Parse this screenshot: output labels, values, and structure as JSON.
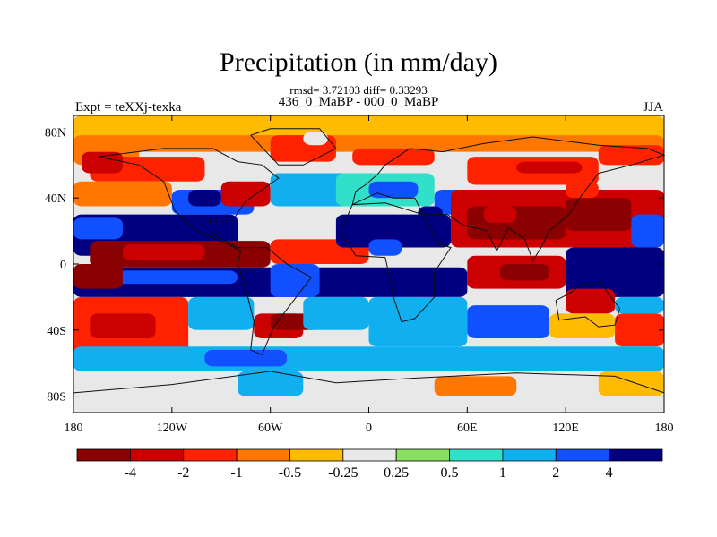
{
  "chart_data": {
    "type": "heatmap",
    "title": "Precipitation (in mm/day)",
    "stats_line": "rmsd= 3.72103 diff= 0.33293",
    "comparison_line": "436_0_MaBP - 000_0_MaBP",
    "experiment_label": "Expt = teXXj-texka",
    "season_label": "JJA",
    "x_range": [
      -180,
      180
    ],
    "y_range": [
      -90,
      90
    ],
    "x_ticks": [
      {
        "value": -180,
        "label": "180"
      },
      {
        "value": -120,
        "label": "120W"
      },
      {
        "value": -60,
        "label": "60W"
      },
      {
        "value": 0,
        "label": "0"
      },
      {
        "value": 60,
        "label": "60E"
      },
      {
        "value": 120,
        "label": "120E"
      },
      {
        "value": 180,
        "label": "180"
      }
    ],
    "y_ticks": [
      {
        "value": 80,
        "label": "80N"
      },
      {
        "value": 40,
        "label": "40N"
      },
      {
        "value": 0,
        "label": "0"
      },
      {
        "value": -40,
        "label": "40S"
      },
      {
        "value": -80,
        "label": "80S"
      }
    ],
    "colorbar": {
      "colors": [
        "#8b0000",
        "#cc0000",
        "#ff2200",
        "#ff7700",
        "#ffbb00",
        "#e8e8e8",
        "#88e060",
        "#30e0c8",
        "#10b0f0",
        "#1050ff",
        "#000080"
      ],
      "tick_labels": [
        "-4",
        "-2",
        "-1",
        "-0.5",
        "-0.25",
        "0.25",
        "0.5",
        "1",
        "2",
        "4"
      ]
    },
    "regions": [
      {
        "lon": [
          -180,
          180
        ],
        "lat": [
          -90,
          90
        ],
        "level": 5
      },
      {
        "lon": [
          -180,
          180
        ],
        "lat": [
          70,
          90
        ],
        "level": 4
      },
      {
        "lon": [
          -180,
          -140
        ],
        "lat": [
          60,
          75
        ],
        "level": 3
      },
      {
        "lon": [
          -170,
          -100
        ],
        "lat": [
          50,
          65
        ],
        "level": 2
      },
      {
        "lon": [
          -175,
          -150
        ],
        "lat": [
          55,
          68
        ],
        "level": 1
      },
      {
        "lon": [
          -180,
          180
        ],
        "lat": [
          68,
          78
        ],
        "level": 3
      },
      {
        "lon": [
          -60,
          -20
        ],
        "lat": [
          62,
          78
        ],
        "level": 2
      },
      {
        "lon": [
          -40,
          -25
        ],
        "lat": [
          72,
          80
        ],
        "level": 5
      },
      {
        "lon": [
          -10,
          40
        ],
        "lat": [
          60,
          70
        ],
        "level": 2
      },
      {
        "lon": [
          60,
          140
        ],
        "lat": [
          48,
          65
        ],
        "level": 2
      },
      {
        "lon": [
          90,
          130
        ],
        "lat": [
          55,
          62
        ],
        "level": 1
      },
      {
        "lon": [
          140,
          180
        ],
        "lat": [
          60,
          72
        ],
        "level": 2
      },
      {
        "lon": [
          -180,
          -120
        ],
        "lat": [
          35,
          50
        ],
        "level": 3
      },
      {
        "lon": [
          -120,
          -70
        ],
        "lat": [
          30,
          45
        ],
        "level": 9
      },
      {
        "lon": [
          -110,
          -90
        ],
        "lat": [
          35,
          45
        ],
        "level": 10
      },
      {
        "lon": [
          -90,
          -60
        ],
        "lat": [
          35,
          50
        ],
        "level": 1
      },
      {
        "lon": [
          -60,
          -10
        ],
        "lat": [
          35,
          55
        ],
        "level": 8
      },
      {
        "lon": [
          -60,
          -20
        ],
        "lat": [
          25,
          35
        ],
        "level": 5
      },
      {
        "lon": [
          -20,
          40
        ],
        "lat": [
          35,
          55
        ],
        "level": 7
      },
      {
        "lon": [
          0,
          30
        ],
        "lat": [
          40,
          50
        ],
        "level": 9
      },
      {
        "lon": [
          40,
          60
        ],
        "lat": [
          30,
          45
        ],
        "level": 9
      },
      {
        "lon": [
          30,
          45
        ],
        "lat": [
          25,
          35
        ],
        "level": 10
      },
      {
        "lon": [
          50,
          180
        ],
        "lat": [
          10,
          45
        ],
        "level": 1
      },
      {
        "lon": [
          60,
          120
        ],
        "lat": [
          15,
          35
        ],
        "level": 0
      },
      {
        "lon": [
          70,
          90
        ],
        "lat": [
          25,
          35
        ],
        "level": 1
      },
      {
        "lon": [
          120,
          160
        ],
        "lat": [
          20,
          40
        ],
        "level": 0
      },
      {
        "lon": [
          160,
          180
        ],
        "lat": [
          10,
          30
        ],
        "level": 9
      },
      {
        "lon": [
          120,
          140
        ],
        "lat": [
          40,
          50
        ],
        "level": 2
      },
      {
        "lon": [
          -180,
          -80
        ],
        "lat": [
          5,
          30
        ],
        "level": 10
      },
      {
        "lon": [
          -180,
          -150
        ],
        "lat": [
          15,
          28
        ],
        "level": 9
      },
      {
        "lon": [
          -170,
          -60
        ],
        "lat": [
          -2,
          14
        ],
        "level": 0
      },
      {
        "lon": [
          -150,
          -100
        ],
        "lat": [
          2,
          12
        ],
        "level": 1
      },
      {
        "lon": [
          -60,
          0
        ],
        "lat": [
          0,
          15
        ],
        "level": 2
      },
      {
        "lon": [
          -20,
          50
        ],
        "lat": [
          10,
          30
        ],
        "level": 10
      },
      {
        "lon": [
          0,
          20
        ],
        "lat": [
          5,
          15
        ],
        "level": 9
      },
      {
        "lon": [
          -180,
          60
        ],
        "lat": [
          -20,
          -2
        ],
        "level": 10
      },
      {
        "lon": [
          -170,
          -80
        ],
        "lat": [
          -12,
          -4
        ],
        "level": 9
      },
      {
        "lon": [
          -180,
          -150
        ],
        "lat": [
          -15,
          0
        ],
        "level": 0
      },
      {
        "lon": [
          -60,
          -30
        ],
        "lat": [
          -20,
          0
        ],
        "level": 9
      },
      {
        "lon": [
          60,
          120
        ],
        "lat": [
          -15,
          5
        ],
        "level": 1
      },
      {
        "lon": [
          80,
          110
        ],
        "lat": [
          -10,
          0
        ],
        "level": 0
      },
      {
        "lon": [
          120,
          180
        ],
        "lat": [
          -20,
          10
        ],
        "level": 10
      },
      {
        "lon": [
          120,
          150
        ],
        "lat": [
          -30,
          -15
        ],
        "level": 1
      },
      {
        "lon": [
          150,
          180
        ],
        "lat": [
          -30,
          -20
        ],
        "level": 8
      },
      {
        "lon": [
          -180,
          -110
        ],
        "lat": [
          -55,
          -20
        ],
        "level": 2
      },
      {
        "lon": [
          -170,
          -130
        ],
        "lat": [
          -45,
          -30
        ],
        "level": 1
      },
      {
        "lon": [
          -110,
          -70
        ],
        "lat": [
          -40,
          -20
        ],
        "level": 8
      },
      {
        "lon": [
          -70,
          -40
        ],
        "lat": [
          -45,
          -30
        ],
        "level": 1
      },
      {
        "lon": [
          -60,
          -30
        ],
        "lat": [
          -40,
          -30
        ],
        "level": 0
      },
      {
        "lon": [
          -40,
          0
        ],
        "lat": [
          -40,
          -20
        ],
        "level": 8
      },
      {
        "lon": [
          0,
          60
        ],
        "lat": [
          -50,
          -20
        ],
        "level": 8
      },
      {
        "lon": [
          60,
          110
        ],
        "lat": [
          -45,
          -25
        ],
        "level": 9
      },
      {
        "lon": [
          110,
          150
        ],
        "lat": [
          -45,
          -30
        ],
        "level": 4
      },
      {
        "lon": [
          150,
          180
        ],
        "lat": [
          -50,
          -30
        ],
        "level": 2
      },
      {
        "lon": [
          -180,
          180
        ],
        "lat": [
          -65,
          -50
        ],
        "level": 8
      },
      {
        "lon": [
          -100,
          -50
        ],
        "lat": [
          -62,
          -52
        ],
        "level": 9
      },
      {
        "lon": [
          80,
          140
        ],
        "lat": [
          -62,
          -52
        ],
        "level": 8
      },
      {
        "lon": [
          -180,
          180
        ],
        "lat": [
          -90,
          -65
        ],
        "level": 5
      },
      {
        "lon": [
          -80,
          -40
        ],
        "lat": [
          -80,
          -65
        ],
        "level": 8
      },
      {
        "lon": [
          40,
          90
        ],
        "lat": [
          -80,
          -68
        ],
        "level": 3
      },
      {
        "lon": [
          140,
          180
        ],
        "lat": [
          -80,
          -65
        ],
        "level": 4
      }
    ],
    "coastlines": [
      [
        [
          -165,
          65
        ],
        [
          -140,
          60
        ],
        [
          -125,
          50
        ],
        [
          -118,
          32
        ],
        [
          -105,
          20
        ],
        [
          -88,
          13
        ],
        [
          -78,
          8
        ],
        [
          -80,
          0
        ],
        [
          -75,
          -15
        ],
        [
          -70,
          -35
        ],
        [
          -72,
          -52
        ],
        [
          -65,
          -55
        ],
        [
          -58,
          -38
        ],
        [
          -48,
          -25
        ],
        [
          -35,
          -8
        ],
        [
          -50,
          0
        ],
        [
          -62,
          10
        ],
        [
          -80,
          10
        ],
        [
          -95,
          18
        ],
        [
          -97,
          28
        ],
        [
          -82,
          28
        ],
        [
          -75,
          38
        ],
        [
          -65,
          45
        ],
        [
          -55,
          52
        ],
        [
          -65,
          60
        ],
        [
          -80,
          62
        ],
        [
          -95,
          70
        ],
        [
          -125,
          70
        ],
        [
          -165,
          65
        ]
      ],
      [
        [
          -72,
          78
        ],
        [
          -55,
          60
        ],
        [
          -40,
          60
        ],
        [
          -20,
          70
        ],
        [
          -30,
          82
        ],
        [
          -60,
          82
        ],
        [
          -72,
          78
        ]
      ],
      [
        [
          -10,
          36
        ],
        [
          -17,
          20
        ],
        [
          -8,
          5
        ],
        [
          10,
          4
        ],
        [
          12,
          -5
        ],
        [
          15,
          -20
        ],
        [
          20,
          -35
        ],
        [
          28,
          -33
        ],
        [
          40,
          -20
        ],
        [
          40,
          -5
        ],
        [
          50,
          10
        ],
        [
          43,
          12
        ],
        [
          33,
          30
        ],
        [
          10,
          37
        ],
        [
          -10,
          36
        ]
      ],
      [
        [
          -10,
          36
        ],
        [
          -8,
          44
        ],
        [
          -2,
          48
        ],
        [
          5,
          54
        ],
        [
          10,
          60
        ],
        [
          25,
          70
        ],
        [
          45,
          68
        ],
        [
          70,
          73
        ],
        [
          100,
          77
        ],
        [
          140,
          72
        ],
        [
          170,
          70
        ],
        [
          180,
          66
        ],
        [
          160,
          60
        ],
        [
          140,
          55
        ],
        [
          130,
          42
        ],
        [
          122,
          30
        ],
        [
          110,
          20
        ],
        [
          105,
          10
        ],
        [
          100,
          2
        ],
        [
          95,
          15
        ],
        [
          85,
          22
        ],
        [
          78,
          8
        ],
        [
          72,
          20
        ],
        [
          57,
          24
        ],
        [
          48,
          30
        ],
        [
          33,
          30
        ],
        [
          28,
          40
        ],
        [
          15,
          40
        ],
        [
          5,
          43
        ],
        [
          -10,
          36
        ]
      ],
      [
        [
          114,
          -22
        ],
        [
          122,
          -18
        ],
        [
          130,
          -12
        ],
        [
          137,
          -12
        ],
        [
          142,
          -11
        ],
        [
          146,
          -18
        ],
        [
          153,
          -27
        ],
        [
          150,
          -37
        ],
        [
          140,
          -38
        ],
        [
          132,
          -32
        ],
        [
          116,
          -34
        ],
        [
          114,
          -22
        ]
      ],
      [
        [
          -180,
          -78
        ],
        [
          -120,
          -73
        ],
        [
          -60,
          -65
        ],
        [
          -20,
          -72
        ],
        [
          30,
          -69
        ],
        [
          90,
          -66
        ],
        [
          150,
          -68
        ],
        [
          180,
          -78
        ]
      ]
    ]
  }
}
